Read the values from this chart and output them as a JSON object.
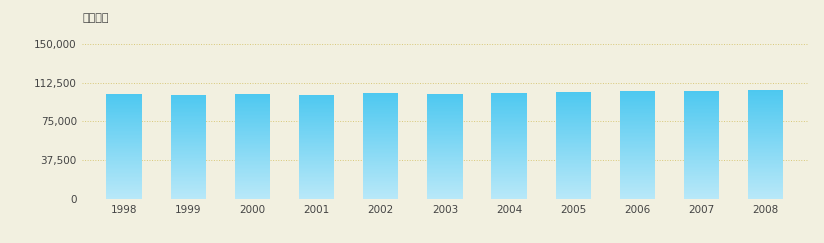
{
  "years": [
    1998,
    1999,
    2000,
    2001,
    2002,
    2003,
    2004,
    2005,
    2006,
    2007,
    2008
  ],
  "values": [
    101039,
    100526,
    101556,
    100811,
    102305,
    101449,
    102789,
    103302,
    104285,
    104121,
    104913
  ],
  "ylabel": "施術者数",
  "yticks": [
    0,
    37500,
    75000,
    112500,
    150000
  ],
  "ytick_labels": [
    "0",
    "37,500",
    "75,000",
    "112,500",
    "150,000"
  ],
  "ylim": [
    0,
    157000
  ],
  "background_color": "#f2f0e0",
  "bar_color_top": "#4dc8f0",
  "bar_color_bottom": "#b8e8f8",
  "grid_color": "#d8c878",
  "text_color": "#444444",
  "bar_width": 0.55
}
